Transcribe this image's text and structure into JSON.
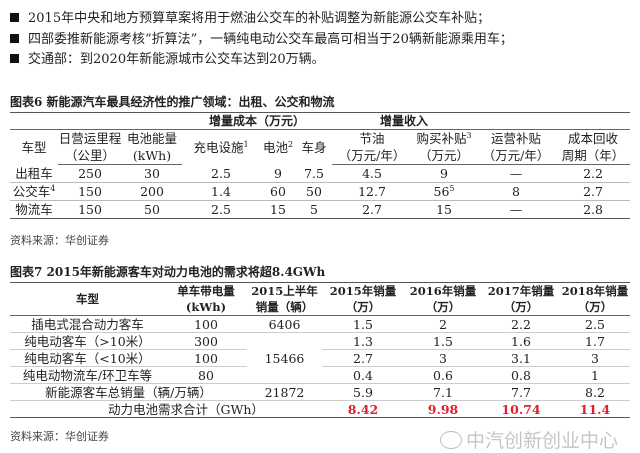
{
  "bullets": [
    "2015年中央和地方预算草案将用于燃油公交车的补贴调整为新能源公交车补贴；",
    "四部委推新能源考核“折算法”，一辆纯电动公交车最高可相当于20辆新能源乘用车；",
    "交通部：到2020年新能源城市公交车达到20万辆。"
  ],
  "fig6": {
    "title": "图表6 新能源汽车最具经济性的推广领域：出租、公交和物流",
    "group_cost": "增量成本（万元）",
    "group_income": "增量收入",
    "headers": [
      [
        "车型",
        ""
      ],
      [
        "日营运里程",
        "（公里）"
      ],
      [
        "电池能量",
        "(kWh)"
      ],
      [
        "充电设施",
        "1"
      ],
      [
        "电池",
        "2"
      ],
      [
        "车身",
        ""
      ],
      [
        "节油",
        "（万元/年）"
      ],
      [
        "购买补贴",
        "3"
      ],
      [
        "运营补贴",
        "（万元/年）"
      ],
      [
        "成本回收",
        "周期（年）"
      ]
    ],
    "sub_income_buy": "（万元）",
    "rows": [
      {
        "type": "出租车",
        "sup": "",
        "mileage": "250",
        "battery": "30",
        "charging": "2.5",
        "batt_cost": "9",
        "body": "7.5",
        "fuel": "4.5",
        "buy": "9",
        "buy_sup": "",
        "op": "—",
        "payback": "2.2"
      },
      {
        "type": "公交车",
        "sup": "4",
        "mileage": "150",
        "battery": "200",
        "charging": "1.4",
        "batt_cost": "60",
        "body": "50",
        "fuel": "12.7",
        "buy": "56",
        "buy_sup": "5",
        "op": "8",
        "payback": "2.7"
      },
      {
        "type": "物流车",
        "sup": "",
        "mileage": "150",
        "battery": "50",
        "charging": "2.5",
        "batt_cost": "15",
        "body": "5",
        "fuel": "2.7",
        "buy": "15",
        "buy_sup": "",
        "op": "—",
        "payback": "2.8"
      }
    ],
    "source": "资料来源：华创证券"
  },
  "fig7": {
    "title": "图表7 2015年新能源客车对动力电池的需求将超8.4GWh",
    "headers": [
      [
        "车型",
        ""
      ],
      [
        "单车带电量",
        "(kWh)"
      ],
      [
        "2015上半年",
        "销量（辆）"
      ],
      [
        "2015年销量",
        "（万）"
      ],
      [
        "2016年销量",
        "（万）"
      ],
      [
        "2017年销量",
        "（万）"
      ],
      [
        "2018年销量",
        "（万）"
      ]
    ],
    "rows": [
      [
        "插电式混合动力客车",
        "100",
        "6406",
        "1.5",
        "2",
        "2.2",
        "2.5"
      ],
      [
        "纯电动客车（>10米）",
        "300",
        "",
        "1.3",
        "1.5",
        "1.6",
        "1.7"
      ],
      [
        "纯电动客车（<10米）",
        "100",
        "15466",
        "2.7",
        "3",
        "3.1",
        "3"
      ],
      [
        "纯电动物流车/环卫车等",
        "80",
        "",
        "0.4",
        "0.6",
        "0.8",
        "1"
      ],
      [
        "新能源客车总销量（辆/万辆）",
        "",
        "21872",
        "5.9",
        "7.1",
        "7.7",
        "8.2"
      ]
    ],
    "total": {
      "label": "动力电池需求合计（GWh）",
      "values": [
        "8.42",
        "9.98",
        "10.74",
        "11.4"
      ],
      "color": "#e0202a"
    },
    "source": "资料来源：华创证券"
  },
  "watermark": "中汽创新创业中心"
}
